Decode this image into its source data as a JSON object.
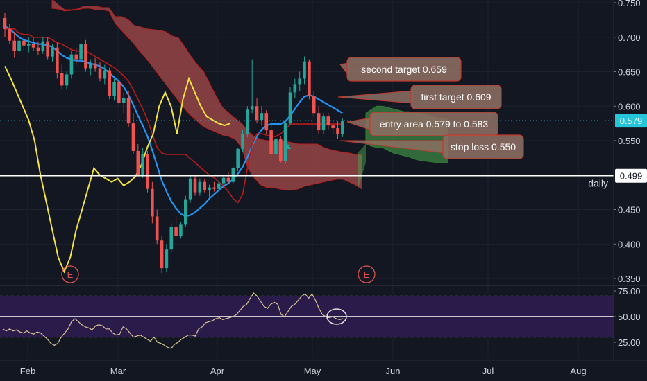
{
  "chart_data": [
    {
      "type": "candlestick",
      "interval_label": "daily",
      "ylim": [
        0.35,
        0.75
      ],
      "y_ticks": [
        "0.750",
        "0.700",
        "0.650",
        "0.600",
        "0.550",
        "0.450",
        "0.400",
        "0.350"
      ],
      "x_ticks": [
        "Feb",
        "Mar",
        "Apr",
        "May",
        "Jun",
        "Jul",
        "Aug"
      ],
      "last_price": "0.579",
      "horizontal_line": "0.499",
      "earnings_markers": [
        "E",
        "E"
      ],
      "annotations": [
        {
          "text": "second target 0.659",
          "value": 0.659
        },
        {
          "text": "first target 0.609",
          "value": 0.609
        },
        {
          "text": "entry area 0.579 to 0.583",
          "value": 0.581
        },
        {
          "text": "stop loss 0.550",
          "value": 0.55
        }
      ],
      "colors": {
        "up": "#26a69a",
        "down": "#ef5350",
        "ma_fast": "#2196f3",
        "ma_slow": "#b71c1c",
        "lagging": "#f5e342",
        "cloud_bear": "#a84b4b",
        "cloud_bull": "#4caf50",
        "callout_fill": "#8d6e63",
        "callout_border": "#c0392b"
      },
      "candles": [
        {
          "o": 0.728,
          "h": 0.735,
          "l": 0.7,
          "c": 0.712
        },
        {
          "o": 0.712,
          "h": 0.72,
          "l": 0.69,
          "c": 0.695
        },
        {
          "o": 0.695,
          "h": 0.708,
          "l": 0.67,
          "c": 0.68
        },
        {
          "o": 0.68,
          "h": 0.7,
          "l": 0.675,
          "c": 0.695
        },
        {
          "o": 0.695,
          "h": 0.702,
          "l": 0.68,
          "c": 0.688
        },
        {
          "o": 0.688,
          "h": 0.7,
          "l": 0.678,
          "c": 0.69
        },
        {
          "o": 0.69,
          "h": 0.7,
          "l": 0.68,
          "c": 0.685
        },
        {
          "o": 0.685,
          "h": 0.694,
          "l": 0.674,
          "c": 0.68
        },
        {
          "o": 0.68,
          "h": 0.7,
          "l": 0.676,
          "c": 0.694
        },
        {
          "o": 0.694,
          "h": 0.7,
          "l": 0.668,
          "c": 0.672
        },
        {
          "o": 0.672,
          "h": 0.69,
          "l": 0.665,
          "c": 0.685
        },
        {
          "o": 0.685,
          "h": 0.692,
          "l": 0.64,
          "c": 0.648
        },
        {
          "o": 0.648,
          "h": 0.66,
          "l": 0.625,
          "c": 0.63
        },
        {
          "o": 0.63,
          "h": 0.65,
          "l": 0.624,
          "c": 0.646
        },
        {
          "o": 0.646,
          "h": 0.68,
          "l": 0.64,
          "c": 0.675
        },
        {
          "o": 0.675,
          "h": 0.685,
          "l": 0.66,
          "c": 0.668
        },
        {
          "o": 0.668,
          "h": 0.695,
          "l": 0.662,
          "c": 0.69
        },
        {
          "o": 0.69,
          "h": 0.696,
          "l": 0.65,
          "c": 0.655
        },
        {
          "o": 0.655,
          "h": 0.668,
          "l": 0.645,
          "c": 0.662
        },
        {
          "o": 0.662,
          "h": 0.67,
          "l": 0.65,
          "c": 0.655
        },
        {
          "o": 0.655,
          "h": 0.664,
          "l": 0.636,
          "c": 0.64
        },
        {
          "o": 0.64,
          "h": 0.66,
          "l": 0.632,
          "c": 0.652
        },
        {
          "o": 0.652,
          "h": 0.656,
          "l": 0.61,
          "c": 0.615
        },
        {
          "o": 0.615,
          "h": 0.64,
          "l": 0.608,
          "c": 0.635
        },
        {
          "o": 0.635,
          "h": 0.64,
          "l": 0.6,
          "c": 0.605
        },
        {
          "o": 0.605,
          "h": 0.62,
          "l": 0.59,
          "c": 0.612
        },
        {
          "o": 0.612,
          "h": 0.622,
          "l": 0.57,
          "c": 0.575
        },
        {
          "o": 0.575,
          "h": 0.59,
          "l": 0.53,
          "c": 0.535
        },
        {
          "o": 0.535,
          "h": 0.545,
          "l": 0.498,
          "c": 0.5
        },
        {
          "o": 0.5,
          "h": 0.54,
          "l": 0.496,
          "c": 0.53
        },
        {
          "o": 0.53,
          "h": 0.535,
          "l": 0.475,
          "c": 0.48
        },
        {
          "o": 0.48,
          "h": 0.49,
          "l": 0.43,
          "c": 0.44
        },
        {
          "o": 0.44,
          "h": 0.45,
          "l": 0.4,
          "c": 0.405
        },
        {
          "o": 0.405,
          "h": 0.412,
          "l": 0.358,
          "c": 0.365
        },
        {
          "o": 0.365,
          "h": 0.4,
          "l": 0.36,
          "c": 0.392
        },
        {
          "o": 0.392,
          "h": 0.43,
          "l": 0.388,
          "c": 0.425
        },
        {
          "o": 0.425,
          "h": 0.44,
          "l": 0.41,
          "c": 0.412
        },
        {
          "o": 0.412,
          "h": 0.432,
          "l": 0.408,
          "c": 0.428
        },
        {
          "o": 0.428,
          "h": 0.47,
          "l": 0.425,
          "c": 0.465
        },
        {
          "o": 0.465,
          "h": 0.5,
          "l": 0.46,
          "c": 0.495
        },
        {
          "o": 0.495,
          "h": 0.5,
          "l": 0.47,
          "c": 0.475
        },
        {
          "o": 0.475,
          "h": 0.495,
          "l": 0.47,
          "c": 0.49
        },
        {
          "o": 0.49,
          "h": 0.494,
          "l": 0.475,
          "c": 0.478
        },
        {
          "o": 0.478,
          "h": 0.486,
          "l": 0.468,
          "c": 0.482
        },
        {
          "o": 0.482,
          "h": 0.49,
          "l": 0.476,
          "c": 0.48
        },
        {
          "o": 0.48,
          "h": 0.492,
          "l": 0.478,
          "c": 0.488
        },
        {
          "o": 0.488,
          "h": 0.5,
          "l": 0.482,
          "c": 0.496
        },
        {
          "o": 0.496,
          "h": 0.504,
          "l": 0.488,
          "c": 0.49
        },
        {
          "o": 0.49,
          "h": 0.512,
          "l": 0.488,
          "c": 0.51
        },
        {
          "o": 0.51,
          "h": 0.54,
          "l": 0.506,
          "c": 0.538
        },
        {
          "o": 0.538,
          "h": 0.565,
          "l": 0.534,
          "c": 0.56
        },
        {
          "o": 0.56,
          "h": 0.6,
          "l": 0.555,
          "c": 0.595
        },
        {
          "o": 0.595,
          "h": 0.668,
          "l": 0.59,
          "c": 0.6
        },
        {
          "o": 0.6,
          "h": 0.612,
          "l": 0.575,
          "c": 0.58
        },
        {
          "o": 0.58,
          "h": 0.6,
          "l": 0.572,
          "c": 0.59
        },
        {
          "o": 0.59,
          "h": 0.594,
          "l": 0.56,
          "c": 0.565
        },
        {
          "o": 0.565,
          "h": 0.572,
          "l": 0.52,
          "c": 0.53
        },
        {
          "o": 0.53,
          "h": 0.56,
          "l": 0.526,
          "c": 0.552
        },
        {
          "o": 0.552,
          "h": 0.556,
          "l": 0.518,
          "c": 0.52
        },
        {
          "o": 0.52,
          "h": 0.58,
          "l": 0.516,
          "c": 0.575
        },
        {
          "o": 0.575,
          "h": 0.628,
          "l": 0.572,
          "c": 0.62
        },
        {
          "o": 0.62,
          "h": 0.64,
          "l": 0.612,
          "c": 0.632
        },
        {
          "o": 0.632,
          "h": 0.65,
          "l": 0.622,
          "c": 0.64
        },
        {
          "o": 0.64,
          "h": 0.672,
          "l": 0.632,
          "c": 0.665
        },
        {
          "o": 0.665,
          "h": 0.668,
          "l": 0.61,
          "c": 0.615
        },
        {
          "o": 0.615,
          "h": 0.622,
          "l": 0.585,
          "c": 0.59
        },
        {
          "o": 0.59,
          "h": 0.6,
          "l": 0.56,
          "c": 0.565
        },
        {
          "o": 0.565,
          "h": 0.59,
          "l": 0.56,
          "c": 0.585
        },
        {
          "o": 0.585,
          "h": 0.59,
          "l": 0.565,
          "c": 0.572
        },
        {
          "o": 0.572,
          "h": 0.58,
          "l": 0.56,
          "c": 0.568
        },
        {
          "o": 0.568,
          "h": 0.578,
          "l": 0.552,
          "c": 0.56
        },
        {
          "o": 0.56,
          "h": 0.582,
          "l": 0.555,
          "c": 0.579
        }
      ],
      "ma_fast": [
        0.716,
        0.712,
        0.706,
        0.7,
        0.696,
        0.694,
        0.692,
        0.69,
        0.69,
        0.688,
        0.686,
        0.68,
        0.674,
        0.67,
        0.668,
        0.666,
        0.666,
        0.664,
        0.662,
        0.66,
        0.658,
        0.654,
        0.648,
        0.642,
        0.636,
        0.628,
        0.616,
        0.602,
        0.586,
        0.572,
        0.556,
        0.536,
        0.514,
        0.492,
        0.476,
        0.462,
        0.452,
        0.444,
        0.44,
        0.442,
        0.446,
        0.452,
        0.458,
        0.466,
        0.472,
        0.478,
        0.484,
        0.488,
        0.494,
        0.502,
        0.512,
        0.526,
        0.542,
        0.556,
        0.566,
        0.572,
        0.574,
        0.574,
        0.574,
        0.578,
        0.586,
        0.596,
        0.606,
        0.614,
        0.616,
        0.614,
        0.61,
        0.606,
        0.602,
        0.598,
        0.594,
        0.59
      ],
      "ma_slow": [
        0.712,
        0.712,
        0.712,
        0.706,
        0.704,
        0.704,
        0.7,
        0.7,
        0.7,
        0.7,
        0.696,
        0.692,
        0.69,
        0.686,
        0.682,
        0.68,
        0.68,
        0.68,
        0.676,
        0.672,
        0.668,
        0.664,
        0.66,
        0.656,
        0.65,
        0.644,
        0.636,
        0.624,
        0.61,
        0.596,
        0.58,
        0.56,
        0.54,
        0.532,
        0.53,
        0.53,
        0.53,
        0.53,
        0.53,
        0.524,
        0.518,
        0.512,
        0.506,
        0.5,
        0.496,
        0.49,
        0.484,
        0.476,
        0.466,
        0.46,
        0.472,
        0.51,
        0.544,
        0.56,
        0.56,
        0.558,
        0.556,
        0.556,
        0.56,
        0.566,
        0.574,
        0.574,
        0.574,
        0.574,
        0.574,
        0.574,
        0.574,
        0.574,
        0.574,
        0.574,
        0.574,
        0.574
      ],
      "lagging": [
        0.658,
        0.64,
        0.62,
        0.6,
        0.58,
        0.55,
        0.5,
        0.46,
        0.42,
        0.38,
        0.36,
        0.38,
        0.42,
        0.45,
        0.48,
        0.51,
        0.5,
        0.495,
        0.49,
        0.495,
        0.485,
        0.49,
        0.498,
        0.515,
        0.54,
        0.56,
        0.6,
        0.62,
        0.6,
        0.56,
        0.61,
        0.64,
        0.62,
        0.6,
        0.585,
        0.58,
        0.575,
        0.572,
        0.575
      ],
      "cloud_upper": [
        0.755,
        0.747,
        0.74,
        0.74,
        0.741,
        0.745,
        0.745,
        0.745,
        0.743,
        0.743,
        0.73,
        0.73,
        0.726,
        0.717,
        0.715,
        0.712,
        0.711,
        0.71,
        0.708,
        0.702,
        0.699,
        0.686,
        0.672,
        0.66,
        0.65,
        0.632,
        0.614,
        0.598,
        0.59,
        0.582,
        0.575,
        0.564,
        0.556,
        0.552,
        0.55,
        0.55,
        0.55,
        0.549,
        0.547,
        0.545,
        0.545,
        0.545,
        0.545,
        0.54,
        0.537,
        0.535,
        0.533,
        0.532,
        0.53,
        0.529
      ],
      "cloud_lower": [
        0.742,
        0.741,
        0.738,
        0.739,
        0.74,
        0.742,
        0.742,
        0.74,
        0.74,
        0.738,
        0.72,
        0.71,
        0.7,
        0.69,
        0.678,
        0.668,
        0.656,
        0.644,
        0.632,
        0.62,
        0.608,
        0.596,
        0.586,
        0.578,
        0.57,
        0.566,
        0.562,
        0.558,
        0.556,
        0.552,
        0.54,
        0.51,
        0.496,
        0.486,
        0.482,
        0.482,
        0.48,
        0.478,
        0.478,
        0.48,
        0.484,
        0.486,
        0.488,
        0.49,
        0.492,
        0.494,
        0.494,
        0.49,
        0.486,
        0.48
      ],
      "cloud_future_upper": [
        0.59,
        0.595,
        0.6,
        0.6,
        0.598,
        0.596,
        0.594,
        0.592,
        0.592,
        0.59,
        0.59,
        0.588,
        0.585,
        0.583,
        0.582,
        0.58
      ],
      "cloud_future_lower": [
        0.545,
        0.542,
        0.54,
        0.54,
        0.536,
        0.532,
        0.53,
        0.528,
        0.526,
        0.523,
        0.521,
        0.52,
        0.519,
        0.518,
        0.518,
        0.518
      ]
    },
    {
      "type": "line",
      "indicator": "oscillator",
      "ylim": [
        15,
        80
      ],
      "y_ticks": [
        "75.00",
        "50.00",
        "25.00"
      ],
      "bands": [
        70,
        30
      ],
      "midline": 50,
      "band_fill": "#2b1b4a",
      "line_color": "#d6c48f",
      "values": [
        38,
        36,
        38,
        36,
        37,
        35,
        34,
        36,
        34,
        33,
        35,
        34,
        31,
        28,
        24,
        22,
        24,
        30,
        34,
        38,
        45,
        48,
        45,
        42,
        40,
        39,
        37,
        41,
        42,
        41,
        38,
        38,
        34,
        32,
        33,
        40,
        38,
        34,
        30,
        31,
        32,
        30,
        28,
        26,
        30,
        25,
        24,
        22,
        20,
        19,
        23,
        25,
        28,
        30,
        32,
        32,
        31,
        38,
        40,
        44,
        45,
        46,
        48,
        49,
        47,
        48,
        49,
        50,
        52,
        56,
        60,
        62,
        68,
        73,
        70,
        65,
        60,
        58,
        62,
        64,
        62,
        52,
        50,
        55,
        60,
        62,
        66,
        70,
        72,
        68,
        72,
        66,
        58,
        52,
        50,
        49,
        50,
        48,
        47,
        48
      ]
    }
  ]
}
